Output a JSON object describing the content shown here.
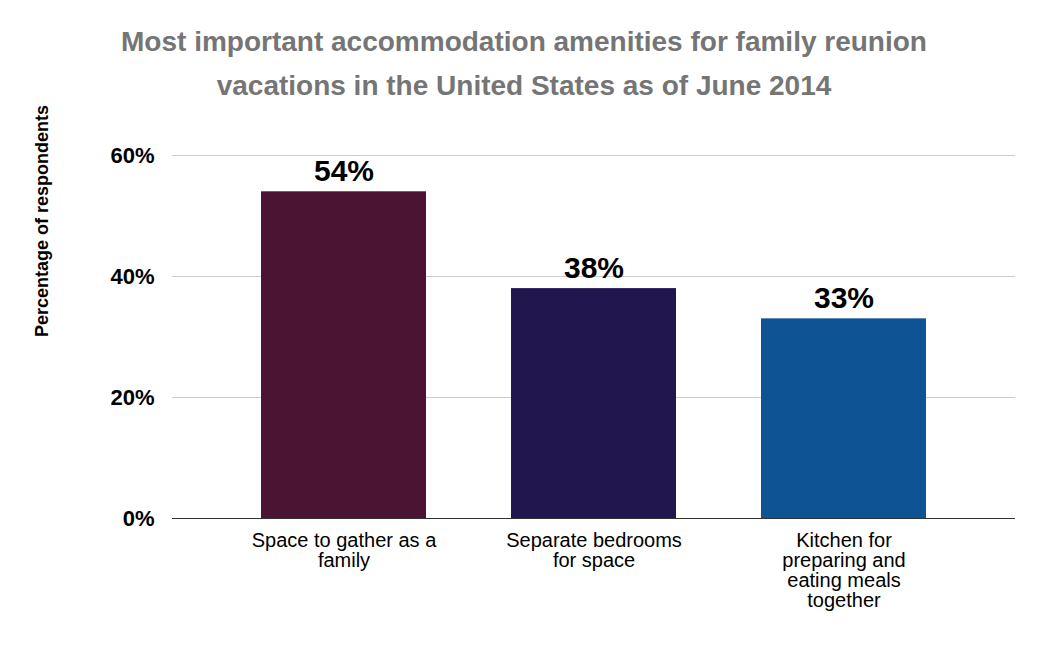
{
  "chart_data": {
    "type": "bar",
    "title": "Most important accommodation amenities for family reunion vacations in the United States as of June 2014",
    "ylabel": "Percentage of respondents",
    "categories": [
      "Space to gather as a family",
      "Separate bedrooms for space",
      "Kitchen for preparing and eating meals together"
    ],
    "values": [
      54,
      38,
      33
    ],
    "value_labels": [
      "54%",
      "38%",
      "33%"
    ],
    "colors": [
      "#4a1432",
      "#22164e",
      "#0e5494"
    ],
    "ylim": [
      0,
      60
    ],
    "yticks": [
      {
        "value": 0,
        "label": "0%"
      },
      {
        "value": 20,
        "label": "20%"
      },
      {
        "value": 40,
        "label": "40%"
      },
      {
        "value": 60,
        "label": "60%"
      }
    ],
    "grid": true,
    "data_labels": true
  }
}
